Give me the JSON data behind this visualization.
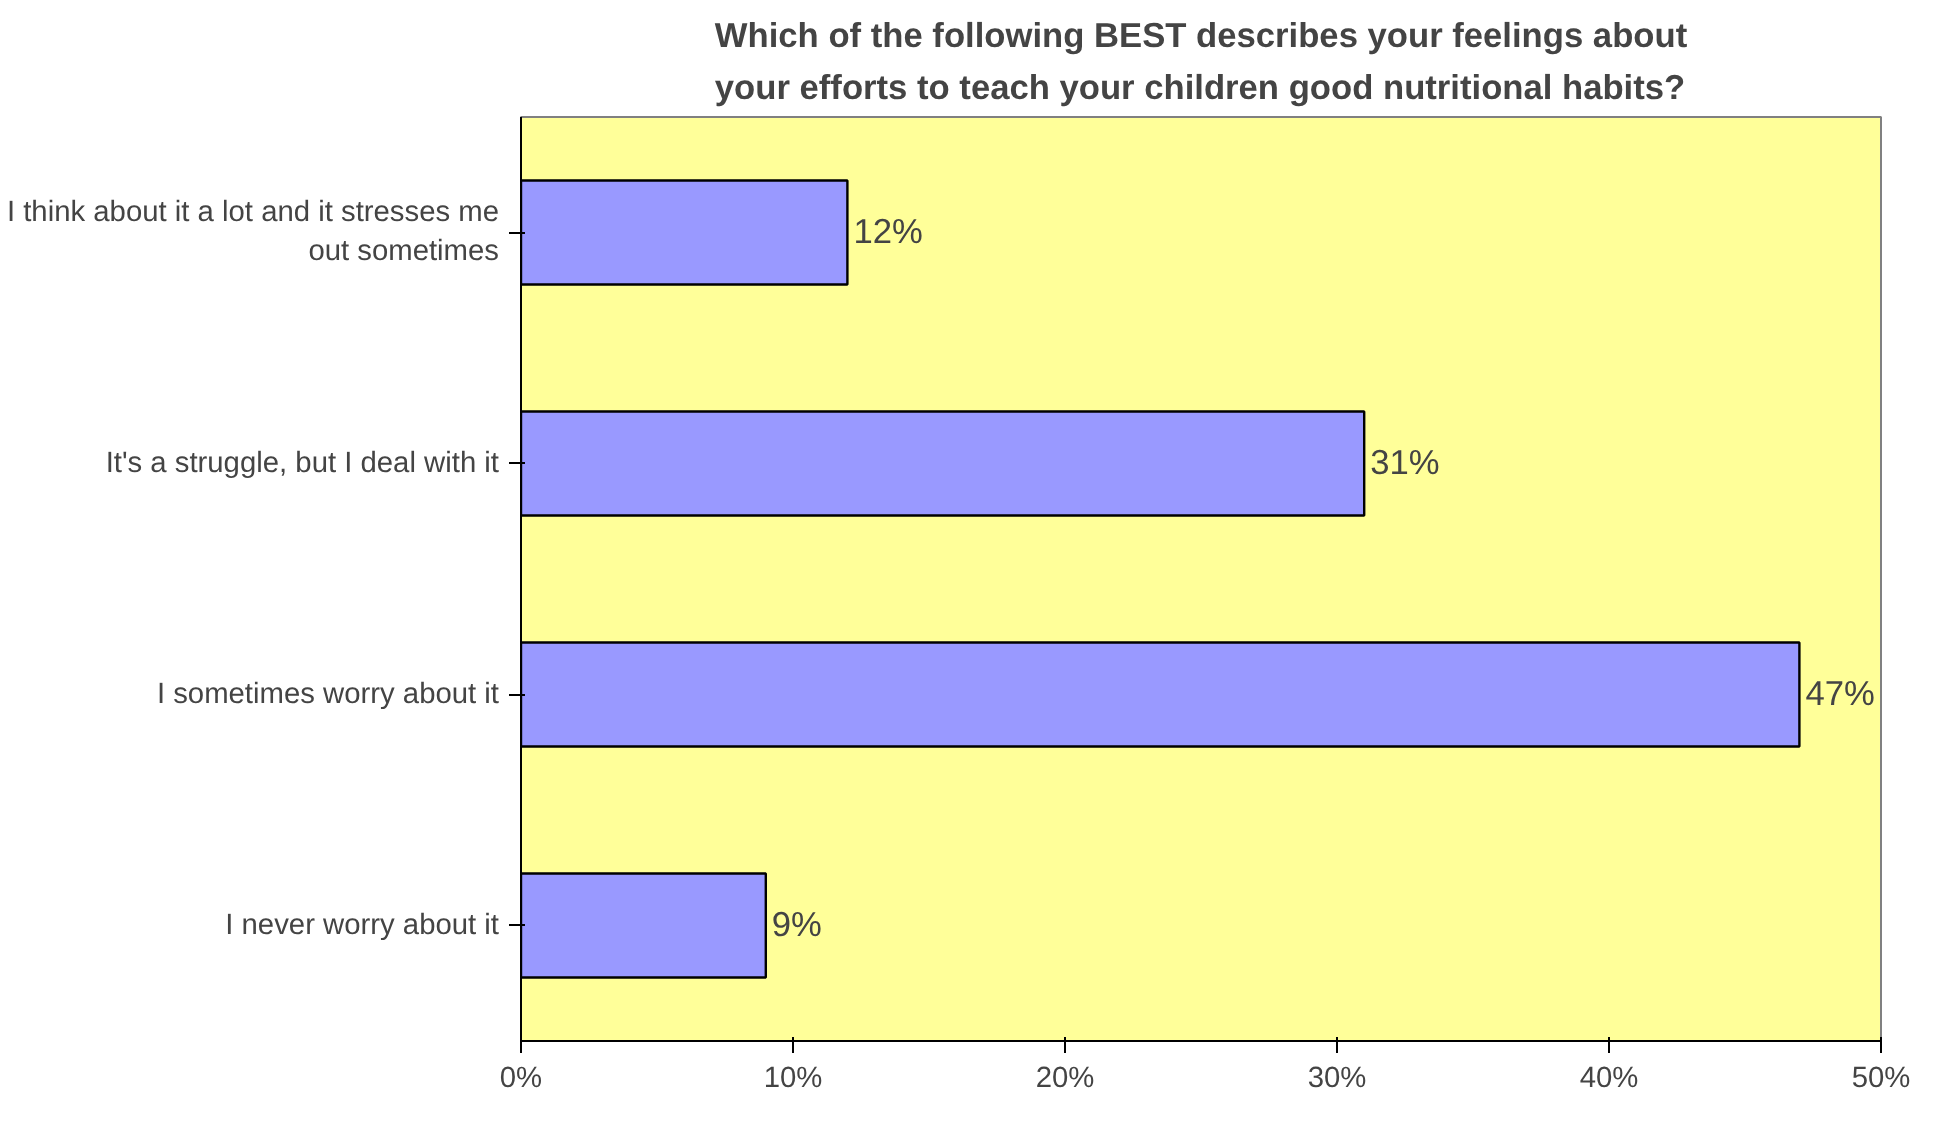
{
  "chart_data": {
    "type": "bar",
    "orientation": "horizontal",
    "title": "Which of the following BEST describes your feelings about\nyour efforts to teach your children good nutritional habits?",
    "categories": [
      "I think about it a lot and it stresses me out sometimes",
      "It's a struggle, but I deal with it",
      "I sometimes worry about it",
      "I never worry about it"
    ],
    "values": [
      12,
      31,
      47,
      9
    ],
    "value_labels": [
      "12%",
      "31%",
      "47%",
      "9%"
    ],
    "color": "#9999ff",
    "xlim": [
      0,
      50
    ],
    "xticks": [
      {
        "value": 0,
        "label": "0%"
      },
      {
        "value": 10,
        "label": "10%"
      },
      {
        "value": 20,
        "label": "20%"
      },
      {
        "value": 30,
        "label": "30%"
      },
      {
        "value": 40,
        "label": "40%"
      },
      {
        "value": 50,
        "label": "50%"
      }
    ],
    "grid": false
  }
}
